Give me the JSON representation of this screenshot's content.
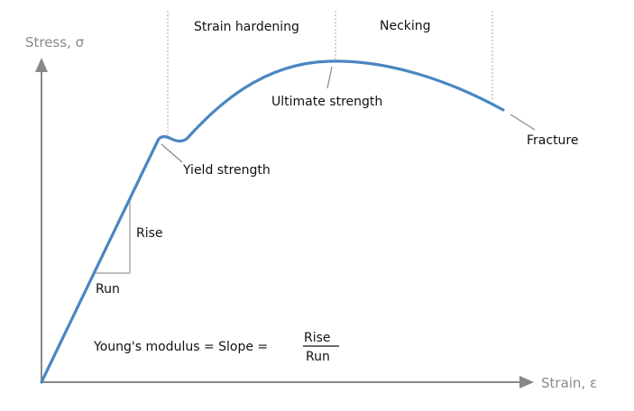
{
  "axes": {
    "y_label": "Stress, σ",
    "x_label": "Strain, ε"
  },
  "regions": {
    "strain_hardening": "Strain hardening",
    "necking": "Necking"
  },
  "annotations": {
    "yield_strength": "Yield strength",
    "ultimate_strength": "Ultimate strength",
    "fracture": "Fracture",
    "rise": "Rise",
    "run": "Run"
  },
  "formula": {
    "prefix": "Young's modulus = Slope =",
    "numerator": "Rise",
    "denominator": "Run"
  },
  "colors": {
    "curve": "#4a86c2",
    "axis": "#888888",
    "axis_label": "#8a8a8a",
    "guide": "#aaaaaa",
    "text": "#111111"
  }
}
